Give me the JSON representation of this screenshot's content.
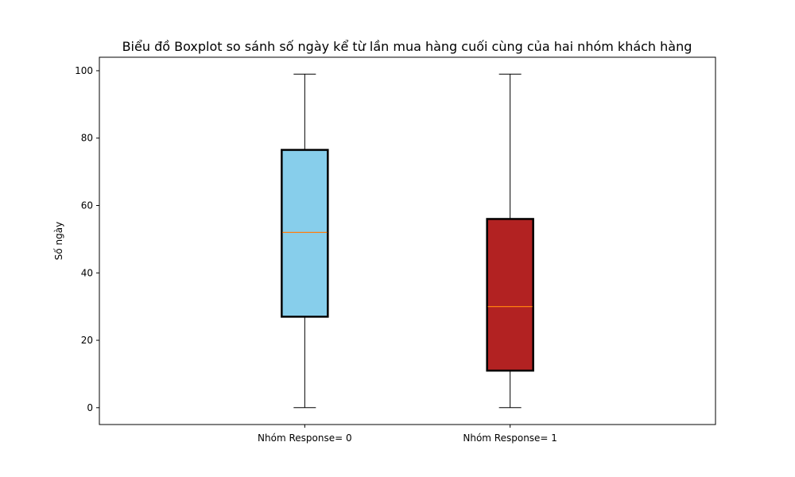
{
  "chart_data": {
    "type": "boxplot",
    "title": "Biểu đồ Boxplot so sánh số ngày kể từ lần mua hàng cuối cùng của hai nhóm khách hàng",
    "xlabel": "",
    "ylabel": "Số ngày",
    "ylim": [
      -5,
      104
    ],
    "yticks": [
      0,
      20,
      40,
      60,
      80,
      100
    ],
    "grid": false,
    "categories": [
      "Nhóm Response= 0",
      "Nhóm Response= 1"
    ],
    "boxes": [
      {
        "category": "Nhóm Response= 0",
        "min": 0,
        "q1": 27,
        "median": 52,
        "q3": 76.5,
        "max": 99,
        "color": "#87ceeb"
      },
      {
        "category": "Nhóm Response= 1",
        "min": 0,
        "q1": 11,
        "median": 30,
        "q3": 56,
        "max": 99,
        "color": "#b22222"
      }
    ],
    "median_color": "#ff7f0e"
  }
}
